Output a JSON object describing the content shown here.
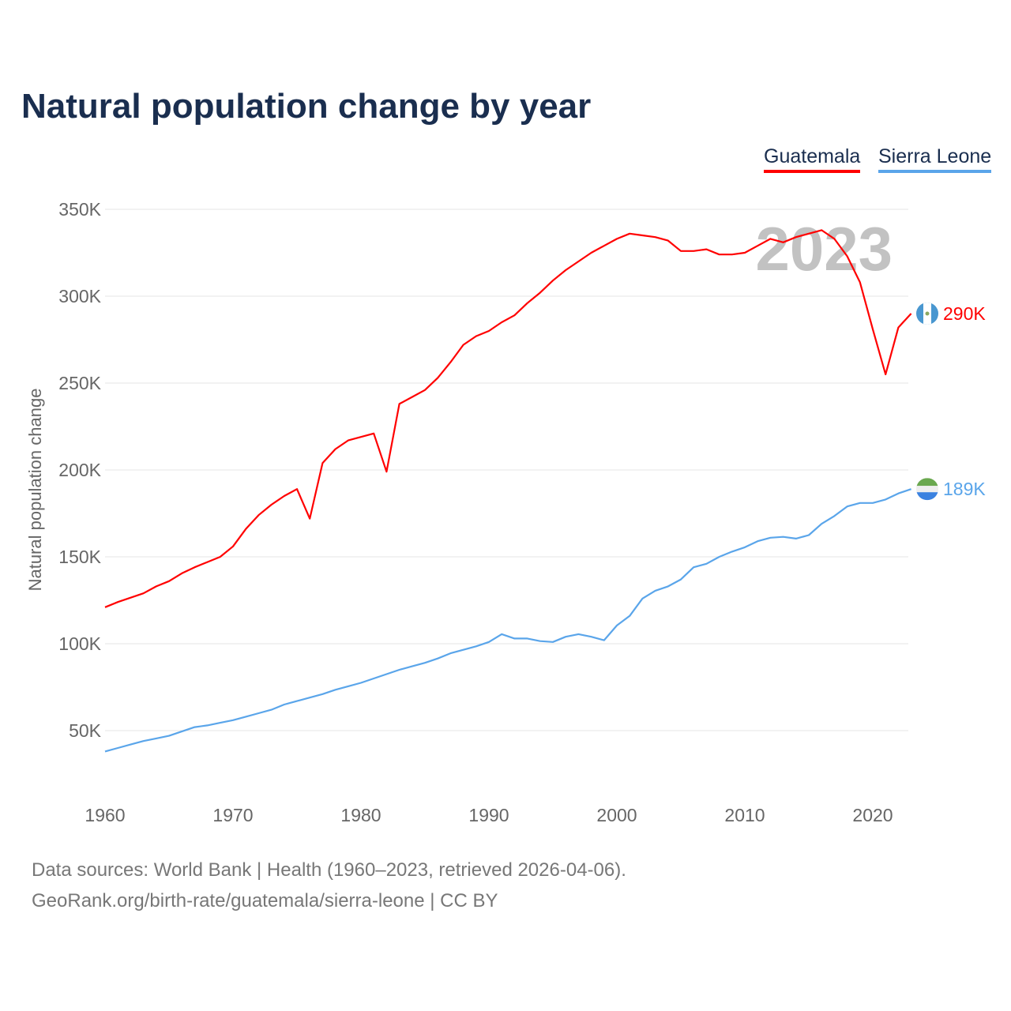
{
  "chart_data": {
    "type": "line",
    "title": "Natural population change by year",
    "xlabel": "",
    "ylabel": "Natural population change",
    "xlim": [
      1960,
      2023
    ],
    "ylim": [
      20000,
      360000
    ],
    "x_ticks": [
      1960,
      1970,
      1980,
      1990,
      2000,
      2010,
      2020
    ],
    "x_tick_labels": [
      "1960",
      "1970",
      "1980",
      "1990",
      "2000",
      "2010",
      "2020"
    ],
    "y_ticks": [
      50000,
      100000,
      150000,
      200000,
      250000,
      300000,
      350000
    ],
    "y_tick_labels": [
      "50K",
      "100K",
      "150K",
      "200K",
      "250K",
      "300K",
      "350K"
    ],
    "grid": true,
    "legend_position": "top-right",
    "year_watermark": "2023",
    "x": [
      1960,
      1961,
      1962,
      1963,
      1964,
      1965,
      1966,
      1967,
      1968,
      1969,
      1970,
      1971,
      1972,
      1973,
      1974,
      1975,
      1976,
      1977,
      1978,
      1979,
      1980,
      1981,
      1982,
      1983,
      1984,
      1985,
      1986,
      1987,
      1988,
      1989,
      1990,
      1991,
      1992,
      1993,
      1994,
      1995,
      1996,
      1997,
      1998,
      1999,
      2000,
      2001,
      2002,
      2003,
      2004,
      2005,
      2006,
      2007,
      2008,
      2009,
      2010,
      2011,
      2012,
      2013,
      2014,
      2015,
      2016,
      2017,
      2018,
      2019,
      2020,
      2021,
      2022,
      2023
    ],
    "series": [
      {
        "name": "Guatemala",
        "color": "#ff0000",
        "end_label": "290K",
        "values": [
          121000,
          124000,
          126500,
          129000,
          133000,
          136000,
          140500,
          144000,
          147000,
          150000,
          156000,
          166000,
          174000,
          180000,
          185000,
          189000,
          172000,
          204000,
          212000,
          217000,
          219000,
          221000,
          199000,
          238000,
          242000,
          246000,
          253000,
          262000,
          272000,
          277000,
          280000,
          285000,
          289000,
          296000,
          302000,
          309000,
          315000,
          320000,
          325000,
          329000,
          333000,
          336000,
          335000,
          334000,
          332000,
          326000,
          326000,
          327000,
          324000,
          324000,
          325000,
          329000,
          333000,
          331000,
          334000,
          336000,
          338000,
          333000,
          323000,
          308000,
          281000,
          255000,
          282000,
          290000
        ]
      },
      {
        "name": "Sierra Leone",
        "color": "#5aa5ea",
        "end_label": "189K",
        "values": [
          38000,
          40000,
          42000,
          44000,
          45500,
          47000,
          49500,
          52000,
          53000,
          54500,
          56000,
          58000,
          60000,
          62000,
          65000,
          67000,
          69000,
          71000,
          73500,
          75500,
          77500,
          80000,
          82500,
          85000,
          87000,
          89000,
          91500,
          94500,
          96500,
          98500,
          101000,
          105500,
          103000,
          103000,
          101500,
          101000,
          104000,
          105500,
          104000,
          102000,
          110500,
          116000,
          126000,
          130500,
          133000,
          137000,
          144000,
          146000,
          150000,
          153000,
          155500,
          159000,
          161000,
          161500,
          160500,
          162500,
          169000,
          173500,
          179000,
          181000,
          181000,
          183000,
          186500,
          189000
        ]
      }
    ]
  },
  "footer": {
    "line1": "Data sources: World Bank | Health (1960–2023, retrieved 2026-04-06).",
    "line2": "GeoRank.org/birth-rate/guatemala/sierra-leone | CC BY"
  }
}
